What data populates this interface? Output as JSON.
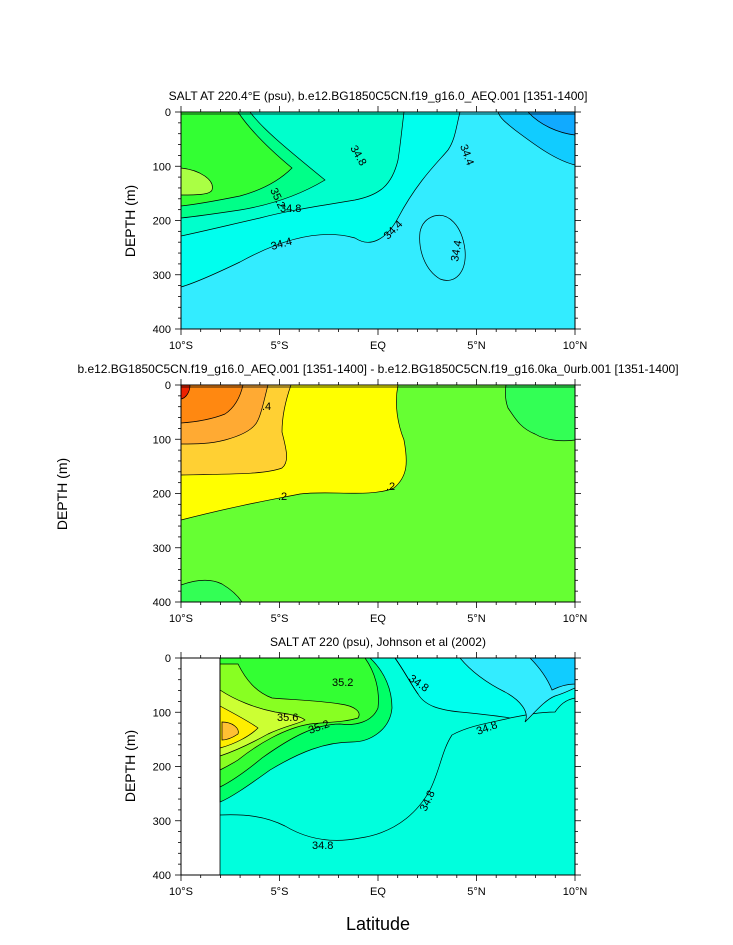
{
  "chart_data": [
    {
      "type": "contour",
      "title": "SALT AT 220.4°E (psu), b.e12.BG1850C5CN.f19_g16.0_AEQ.001 [1351-1400]",
      "xlabel": "",
      "ylabel": "DEPTH (m)",
      "xlim": [
        -10,
        10
      ],
      "ylim": [
        400,
        0
      ],
      "xticks": [
        "10°S",
        "5°S",
        "EQ",
        "5°N",
        "10°N"
      ],
      "yticks": [
        "0",
        "100",
        "200",
        "300",
        "400"
      ],
      "contour_labels": [
        "35.2",
        "34.8",
        "34.8",
        "34.4",
        "34.4",
        "34.4",
        "34.4"
      ],
      "fill_colors": [
        "#33ff33",
        "#00ff88",
        "#00ffcc",
        "#00ffee",
        "#33ecff",
        "#11b6ff",
        "#aaff44"
      ]
    },
    {
      "type": "contour",
      "title": "b.e12.BG1850C5CN.f19_g16.0_AEQ.001 [1351-1400] - b.e12.BG1850C5CN.f19_g16.0ka_0urb.001 [1351-1400]",
      "xlabel": "",
      "ylabel": "DEPTH (m)",
      "xlim": [
        -10,
        10
      ],
      "ylim": [
        400,
        0
      ],
      "xticks": [
        "10°S",
        "5°S",
        "EQ",
        "5°N",
        "10°N"
      ],
      "yticks": [
        "0",
        "100",
        "200",
        "300",
        "400"
      ],
      "contour_labels": [
        ".4",
        ".2",
        ".2"
      ],
      "fill_colors": [
        "#66ff33",
        "#ffff00",
        "#ffd033",
        "#ffaa33",
        "#ff8811",
        "#ee2200",
        "#33ff55"
      ]
    },
    {
      "type": "contour",
      "title": "SALT AT 220 (psu), Johnson et al (2002)",
      "xlabel": "Latitude",
      "ylabel": "DEPTH (m)",
      "xlim": [
        -10,
        10
      ],
      "ylim": [
        400,
        0
      ],
      "xticks": [
        "10°S",
        "5°S",
        "EQ",
        "5°N",
        "10°N"
      ],
      "yticks": [
        "0",
        "100",
        "200",
        "300",
        "400"
      ],
      "contour_labels": [
        "35.2",
        "35.6",
        "35.2",
        "34.8",
        "34.8",
        "34.8",
        "34.8"
      ],
      "fill_colors": [
        "#00ffdd",
        "#00ffee",
        "#33ecff",
        "#00ff66",
        "#33ff33",
        "#88ff22",
        "#ccff33",
        "#ffee00",
        "#ffc033"
      ]
    }
  ]
}
